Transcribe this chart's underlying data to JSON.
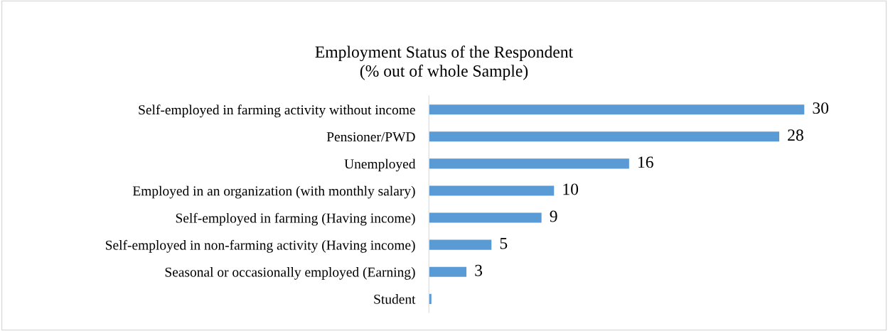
{
  "chart_data": {
    "type": "bar",
    "orientation": "horizontal",
    "title": "Employment Status of the Respondent\n(% out of whole Sample)",
    "categories": [
      "Self-employed in farming activity without income",
      "Pensioner/PWD",
      "Unemployed",
      "Employed in an organization (with monthly salary)",
      "Self-employed in farming (Having income)",
      "Self-employed in non-farming activity (Having income)",
      "Seasonal or occasionally employed (Earning)",
      "Student"
    ],
    "values": [
      30,
      28,
      16,
      10,
      9,
      5,
      3,
      0.2
    ],
    "value_labels": [
      "30",
      "28",
      "16",
      "10",
      "9",
      "5",
      "3",
      null
    ],
    "color": "#5b9bd5",
    "tick_labels": "y",
    "grid": false,
    "legend": false
  }
}
